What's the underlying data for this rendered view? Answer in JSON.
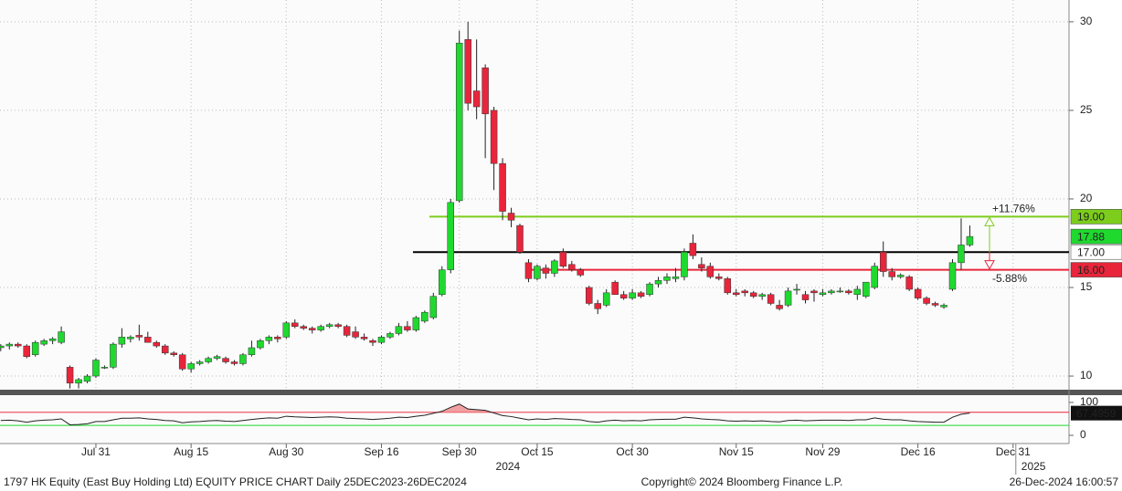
{
  "chart_data": {
    "type": "candlestick",
    "x": [
      "Jul 16",
      "Jul 17",
      "Jul 18",
      "Jul 19",
      "Jul 22",
      "Jul 23",
      "Jul 24",
      "Jul 25",
      "Jul 26",
      "Jul 29",
      "Jul 30",
      "Jul 31",
      "Aug 1",
      "Aug 2",
      "Aug 5",
      "Aug 6",
      "Aug 7",
      "Aug 8",
      "Aug 9",
      "Aug 12",
      "Aug 13",
      "Aug 14",
      "Aug 15",
      "Aug 16",
      "Aug 19",
      "Aug 20",
      "Aug 21",
      "Aug 22",
      "Aug 23",
      "Aug 26",
      "Aug 27",
      "Aug 28",
      "Aug 29",
      "Aug 30",
      "Sep 2",
      "Sep 3",
      "Sep 4",
      "Sep 5",
      "Sep 6",
      "Sep 9",
      "Sep 10",
      "Sep 11",
      "Sep 12",
      "Sep 13",
      "Sep 16",
      "Sep 17",
      "Sep 19",
      "Sep 20",
      "Sep 23",
      "Sep 24",
      "Sep 25",
      "Sep 26",
      "Sep 27",
      "Sep 30",
      "Oct 2",
      "Oct 3",
      "Oct 4",
      "Oct 7",
      "Oct 8",
      "Oct 9",
      "Oct 10",
      "Oct 14",
      "Oct 15",
      "Oct 16",
      "Oct 17",
      "Oct 18",
      "Oct 21",
      "Oct 22",
      "Oct 23",
      "Oct 24",
      "Oct 25",
      "Oct 28",
      "Oct 29",
      "Oct 30",
      "Oct 31",
      "Nov 1",
      "Nov 4",
      "Nov 5",
      "Nov 6",
      "Nov 7",
      "Nov 8",
      "Nov 11",
      "Nov 12",
      "Nov 13",
      "Nov 14",
      "Nov 15",
      "Nov 18",
      "Nov 19",
      "Nov 20",
      "Nov 21",
      "Nov 22",
      "Nov 25",
      "Nov 26",
      "Nov 27",
      "Nov 28",
      "Nov 29",
      "Dec 2",
      "Dec 3",
      "Dec 4",
      "Dec 5",
      "Dec 6",
      "Dec 9",
      "Dec 10",
      "Dec 11",
      "Dec 12",
      "Dec 13",
      "Dec 16",
      "Dec 17",
      "Dec 18",
      "Dec 19",
      "Dec 20",
      "Dec 23",
      "Dec 24"
    ],
    "open": [
      11.6,
      11.7,
      11.8,
      11.7,
      11.2,
      11.8,
      12.0,
      11.9,
      10.5,
      9.6,
      9.7,
      10.0,
      10.5,
      10.5,
      11.8,
      12.1,
      12.3,
      12.2,
      11.9,
      11.7,
      11.3,
      11.2,
      10.4,
      10.7,
      10.8,
      11.0,
      11.0,
      10.8,
      10.7,
      11.2,
      11.6,
      12.0,
      12.2,
      12.2,
      13.0,
      12.8,
      12.7,
      12.6,
      12.8,
      12.9,
      12.8,
      12.5,
      12.2,
      12.0,
      11.9,
      12.2,
      12.4,
      12.8,
      12.6,
      13.1,
      13.3,
      14.6,
      16.0,
      19.9,
      29.0,
      26.1,
      27.4,
      25.0,
      22.0,
      19.2,
      18.5,
      16.4,
      15.5,
      16.1,
      15.8,
      17.0,
      16.3,
      16.0,
      15.0,
      14.1,
      14.0,
      15.3,
      14.6,
      14.4,
      14.7,
      14.6,
      15.2,
      15.4,
      15.5,
      15.6,
      17.5,
      16.3,
      16.2,
      15.6,
      15.5,
      14.7,
      14.8,
      14.7,
      14.5,
      14.6,
      14.0,
      14.0,
      14.9,
      14.6,
      14.8,
      14.6,
      14.7,
      14.8,
      14.8,
      14.6,
      14.5,
      15.0,
      17.0,
      15.9,
      15.6,
      15.6,
      14.9,
      14.4,
      14.1,
      13.9,
      14.9,
      16.4,
      17.4
    ],
    "high": [
      11.8,
      11.9,
      11.9,
      11.8,
      12.0,
      12.1,
      12.2,
      12.8,
      10.6,
      9.9,
      10.1,
      11.0,
      10.6,
      11.9,
      12.7,
      12.3,
      12.9,
      12.5,
      12.0,
      11.8,
      11.4,
      11.3,
      10.8,
      10.9,
      11.1,
      11.2,
      11.1,
      10.9,
      11.3,
      12.0,
      12.1,
      12.3,
      12.3,
      13.1,
      13.2,
      12.9,
      12.8,
      12.9,
      13.0,
      13.0,
      12.9,
      12.8,
      12.4,
      12.1,
      12.3,
      12.5,
      13.0,
      13.1,
      13.4,
      13.7,
      14.7,
      16.2,
      20.0,
      29.5,
      30.0,
      29.0,
      27.6,
      25.2,
      22.3,
      19.5,
      18.6,
      16.6,
      16.3,
      16.3,
      16.6,
      17.2,
      16.5,
      16.1,
      15.1,
      14.3,
      14.9,
      15.4,
      14.8,
      14.9,
      14.8,
      15.3,
      15.6,
      15.8,
      16.1,
      17.2,
      18.0,
      16.7,
      16.4,
      15.8,
      15.6,
      14.9,
      14.9,
      14.8,
      14.7,
      14.7,
      14.3,
      15.0,
      15.2,
      14.8,
      14.9,
      14.9,
      14.9,
      15.0,
      14.9,
      15.1,
      15.3,
      16.4,
      17.6,
      16.1,
      15.8,
      15.7,
      15.0,
      14.5,
      14.2,
      14.1,
      16.6,
      18.9,
      18.5
    ],
    "low": [
      11.4,
      11.5,
      11.6,
      11.0,
      11.1,
      11.7,
      11.8,
      11.8,
      9.3,
      9.3,
      9.6,
      9.9,
      10.4,
      10.4,
      11.6,
      11.9,
      12.0,
      11.9,
      11.6,
      11.2,
      11.1,
      10.3,
      10.2,
      10.6,
      10.7,
      10.9,
      10.7,
      10.6,
      10.6,
      11.1,
      11.5,
      11.8,
      11.9,
      12.1,
      12.7,
      12.6,
      12.4,
      12.5,
      12.7,
      12.7,
      12.2,
      12.1,
      12.0,
      11.7,
      11.8,
      12.1,
      12.3,
      12.5,
      12.5,
      13.0,
      13.2,
      14.5,
      15.8,
      19.8,
      25.0,
      24.5,
      22.3,
      20.5,
      18.8,
      18.4,
      16.9,
      15.3,
      15.4,
      15.5,
      15.6,
      16.1,
      15.9,
      15.6,
      14.0,
      13.5,
      13.9,
      14.6,
      14.3,
      14.3,
      14.4,
      14.5,
      15.0,
      15.2,
      15.3,
      15.4,
      16.6,
      15.9,
      15.5,
      15.4,
      14.6,
      14.5,
      14.5,
      14.4,
      14.3,
      14.0,
      13.7,
      13.9,
      14.6,
      14.1,
      14.2,
      14.5,
      14.6,
      14.7,
      14.6,
      14.3,
      14.4,
      14.9,
      15.6,
      15.4,
      15.5,
      14.8,
      14.3,
      14.0,
      13.9,
      13.8,
      14.8,
      16.0,
      17.3
    ],
    "close": [
      11.7,
      11.8,
      11.7,
      11.1,
      11.9,
      12.0,
      12.1,
      12.5,
      9.6,
      9.8,
      10.0,
      10.9,
      10.5,
      11.8,
      12.2,
      12.2,
      12.2,
      11.9,
      11.7,
      11.3,
      11.2,
      10.4,
      10.7,
      10.8,
      11.0,
      11.1,
      10.8,
      10.7,
      11.2,
      11.6,
      12.0,
      12.2,
      12.1,
      13.0,
      12.8,
      12.7,
      12.6,
      12.8,
      12.9,
      12.8,
      12.3,
      12.2,
      12.1,
      11.9,
      12.2,
      12.4,
      12.8,
      12.6,
      13.3,
      13.6,
      14.5,
      16.0,
      19.8,
      28.8,
      25.4,
      25.2,
      24.8,
      22.0,
      19.3,
      18.8,
      17.0,
      15.5,
      16.2,
      15.8,
      16.5,
      16.2,
      16.0,
      15.7,
      14.1,
      13.8,
      14.7,
      14.6,
      14.4,
      14.7,
      14.5,
      15.2,
      15.4,
      15.6,
      15.6,
      17.0,
      16.8,
      16.1,
      15.6,
      15.5,
      14.7,
      14.6,
      14.7,
      14.5,
      14.6,
      14.1,
      13.8,
      14.8,
      14.9,
      14.3,
      14.7,
      14.7,
      14.8,
      14.8,
      14.7,
      14.9,
      15.3,
      16.2,
      15.9,
      15.6,
      15.7,
      14.9,
      14.4,
      14.1,
      14.0,
      14.0,
      16.4,
      17.4,
      17.88
    ],
    "up_color": "#1fd92f",
    "down_color": "#e8253b",
    "ylim": [
      9.23,
      31.23
    ],
    "yticks": [
      10,
      15,
      20,
      25,
      30
    ],
    "xticks": [
      "Jul 31",
      "Aug 15",
      "Aug 30",
      "Sep 16",
      "Sep 30",
      "Oct 15",
      "Oct 30",
      "Nov 15",
      "Nov 29",
      "Dec 16",
      "Dec 31"
    ],
    "years": [
      "2024",
      "2025"
    ],
    "grid": true,
    "levels": [
      {
        "value": 19,
        "label": "19.00",
        "color": "#7ccd1c"
      },
      {
        "value": 17,
        "label": "17.00",
        "color": "#000000"
      },
      {
        "value": 16,
        "label": "16.00",
        "color": "#e8253b"
      }
    ],
    "annotations": [
      "+11.76%",
      "-5.88%"
    ],
    "rsi": {
      "values": [
        45,
        46,
        44,
        40,
        44,
        46,
        47,
        50,
        32,
        33,
        35,
        42,
        42,
        47,
        52,
        52,
        53,
        50,
        48,
        45,
        44,
        38,
        41,
        42,
        44,
        45,
        43,
        42,
        45,
        48,
        51,
        53,
        52,
        58,
        56,
        55,
        54,
        55,
        56,
        55,
        52,
        51,
        50,
        48,
        50,
        52,
        55,
        54,
        58,
        61,
        67,
        73,
        85,
        95,
        80,
        78,
        76,
        68,
        60,
        57,
        52,
        47,
        50,
        48,
        51,
        50,
        48,
        47,
        42,
        40,
        44,
        46,
        44,
        45,
        44,
        47,
        48,
        49,
        49,
        55,
        53,
        50,
        48,
        47,
        44,
        43,
        44,
        43,
        44,
        42,
        41,
        45,
        46,
        44,
        45,
        46,
        46,
        46,
        45,
        47,
        47,
        53,
        49,
        47,
        47,
        44,
        42,
        41,
        40,
        40,
        55,
        64,
        67.4959
      ],
      "ylim": [
        -25,
        122
      ],
      "yticks": [
        0,
        100
      ],
      "upper": 70,
      "lower": 30,
      "color": "#222222"
    },
    "footer": {
      "left": "1797 HK Equity (East Buy Holding Ltd) EQUITY PRICE CHART  Daily 25DEC2023-26DEC2024",
      "center": "Copyright© 2024 Bloomberg Finance L.P.",
      "right": "26-Dec-2024 16:00:57"
    }
  }
}
